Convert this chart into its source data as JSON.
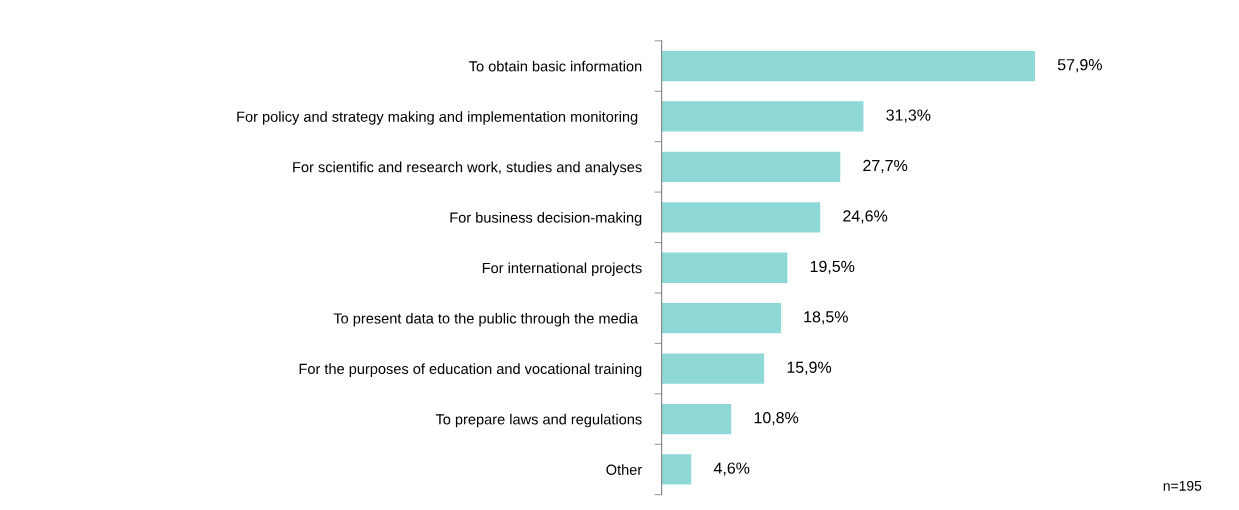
{
  "chart_data": {
    "type": "bar",
    "orientation": "horizontal",
    "tick_labels": "y",
    "categories": [
      "To obtain basic information",
      "For policy and strategy making and implementation monitoring ",
      "For scientific and research work, studies and analyses",
      "For business decision-making",
      "For international projects",
      "To present data to the public through the media ",
      "For the purposes of education and vocational training",
      "To prepare laws and regulations",
      "Other"
    ],
    "values": [
      57.9,
      31.3,
      27.7,
      24.6,
      19.5,
      18.5,
      15.9,
      10.8,
      4.6
    ],
    "value_labels": [
      "57,9%",
      "31,3%",
      "27,7%",
      "24,6%",
      "19,5%",
      "18,5%",
      "15,9%",
      "10,8%",
      "4,6%"
    ],
    "color": "#8ed8d8",
    "grid": false,
    "legend": false,
    "annotations": [
      "n=195"
    ]
  }
}
